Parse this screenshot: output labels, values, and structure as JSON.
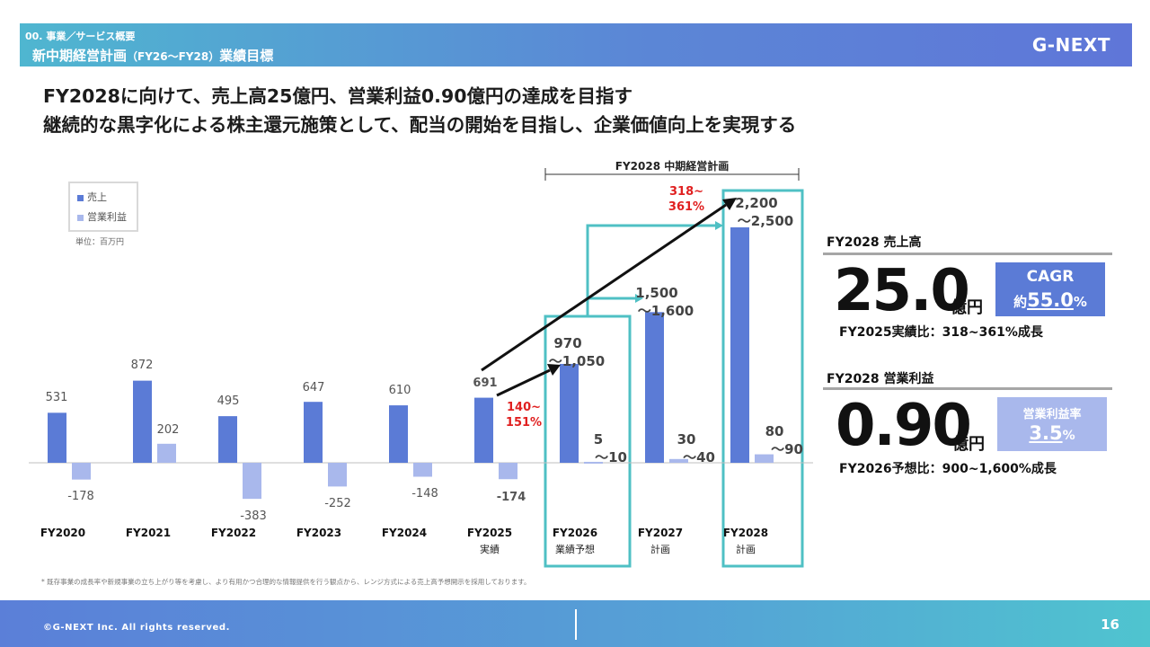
{
  "header": {
    "section_label": "00. 事業／サービス概要",
    "title_main": "新中期経営計画",
    "title_sub": "（FY26〜FY28）",
    "title_tail": "業績目標",
    "logo": "G-NEXT"
  },
  "headlines": [
    "FY2028に向けて、売上高25億円、営業利益0.90億円の達成を目指す",
    "継続的な黒字化による株主還元施策として、配当の開始を目指し、企業価値向上を実現する"
  ],
  "chart_data": {
    "type": "bar",
    "categories": [
      "FY2020",
      "FY2021",
      "FY2022",
      "FY2023",
      "FY2024",
      "FY2025",
      "FY2026",
      "FY2027",
      "FY2028"
    ],
    "category_sublabels": [
      "",
      "",
      "",
      "",
      "",
      "実績",
      "業績予想",
      "計画",
      "計画"
    ],
    "series": [
      {
        "name": "売上",
        "color": "#5b7bd6",
        "values": [
          531,
          872,
          495,
          647,
          610,
          691,
          1050,
          1600,
          2500
        ],
        "labels": [
          "531",
          "872",
          "495",
          "647",
          "610",
          "691",
          "970\n～1,050",
          "1,500\n～1,600",
          "2,200\n～2,500"
        ]
      },
      {
        "name": "営業利益",
        "color": "#a9b8ec",
        "values": [
          -178,
          202,
          -383,
          -252,
          -148,
          -174,
          10,
          40,
          90
        ],
        "labels": [
          "-178",
          "202",
          "-383",
          "-252",
          "-148",
          "-174",
          "5\n～10",
          "30\n～40",
          "80\n～90"
        ]
      }
    ],
    "unit_label": "単位：百万円",
    "plan_bracket_label": "FY2028 中期経営計画",
    "growth_annotations": [
      "140~\n151%",
      "318~\n361%"
    ],
    "annotation_color": "#e02020",
    "highlight_color": "#4fc0c4"
  },
  "kpi": {
    "sales_title": "FY2028 売上高",
    "sales_value": "25.0",
    "sales_unit": "億円",
    "sales_note": "FY2025実績比：318~361%成長",
    "cagr_label": "CAGR",
    "cagr_prefix": "約",
    "cagr_value": "55.0",
    "cagr_suffix": "%",
    "op_title": "FY2028 営業利益",
    "op_value": "0.90",
    "op_unit": "億円",
    "op_note": "FY2026予想比：900~1,600%成長",
    "opm_label": "営業利益率",
    "opm_value": "3.5",
    "opm_suffix": "%"
  },
  "footnote": "* 既存事業の成長率や新規事業の立ち上がり等を考慮し、より有用かつ合理的な情報提供を行う観点から、レンジ方式による売上高予想開示を採用しております。",
  "footer": {
    "copyright": "©G-NEXT Inc. All rights reserved.",
    "page": "16"
  }
}
